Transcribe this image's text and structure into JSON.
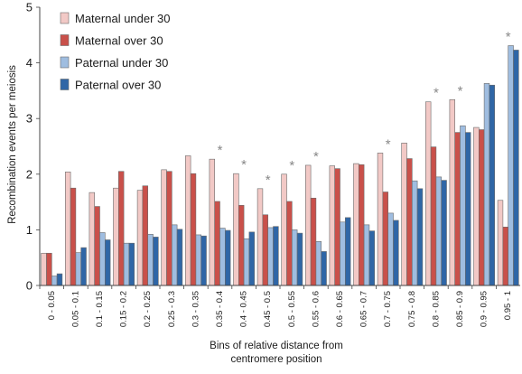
{
  "chart_data": {
    "type": "bar",
    "title": "",
    "xlabel": "Bins of relative distance from centromere position",
    "xlabel_lines": [
      "Bins of relative distance from",
      "centromere position"
    ],
    "ylabel": "Recombination events per meiosis",
    "ylim": [
      0,
      5
    ],
    "yticks": [
      "0",
      "1",
      "2",
      "3",
      "4",
      "5"
    ],
    "grid": false,
    "legend_position": "top-left",
    "significance_marker": "*",
    "categories": [
      "0 - 0.05",
      "0.05 - 0.1",
      "0.1 - 0.15",
      "0.15 - 0.2",
      "0.2 - 0.25",
      "0.25 - 0.3",
      "0.3 - 0.35",
      "0.35 - 0.4",
      "0.4 - 0.45",
      "0.45 - 0.5",
      "0.5 - 0.55",
      "0.55 - 0.6",
      "0.6 - 0.65",
      "0.65 - 0.7",
      "0.7 - 0.75",
      "0.75 - 0.8",
      "0.8 - 0.85",
      "0.85 - 0.9",
      "0.9 - 0.95",
      "0.95 - 1"
    ],
    "significant": [
      false,
      false,
      false,
      false,
      false,
      false,
      false,
      true,
      true,
      true,
      true,
      true,
      false,
      false,
      true,
      false,
      true,
      true,
      false,
      true
    ],
    "series": [
      {
        "name": "Maternal under 30",
        "color": "#f2c9c6",
        "values": [
          0.58,
          2.04,
          1.67,
          1.75,
          1.71,
          2.08,
          2.33,
          2.27,
          2.01,
          1.74,
          2.0,
          2.16,
          2.15,
          2.19,
          2.38,
          2.56,
          3.3,
          3.34,
          2.84,
          1.53
        ]
      },
      {
        "name": "Maternal over 30",
        "color": "#c9504a",
        "values": [
          0.58,
          1.75,
          1.42,
          2.05,
          1.79,
          2.05,
          2.01,
          1.51,
          1.44,
          1.27,
          1.51,
          1.57,
          2.1,
          2.17,
          1.68,
          2.28,
          2.49,
          2.75,
          2.8,
          1.05
        ]
      },
      {
        "name": "Paternal under 30",
        "color": "#9fbde0",
        "values": [
          0.17,
          0.59,
          0.95,
          0.76,
          0.92,
          1.09,
          0.91,
          1.03,
          0.84,
          1.04,
          1.0,
          0.79,
          1.14,
          1.09,
          1.3,
          1.88,
          1.95,
          2.87,
          3.63,
          4.31
        ]
      },
      {
        "name": "Paternal over 30",
        "color": "#2f66a6",
        "values": [
          0.21,
          0.68,
          0.82,
          0.76,
          0.87,
          1.01,
          0.89,
          0.99,
          0.96,
          1.06,
          0.94,
          0.61,
          1.22,
          0.98,
          1.17,
          1.74,
          1.89,
          2.75,
          3.6,
          4.23
        ]
      }
    ]
  }
}
